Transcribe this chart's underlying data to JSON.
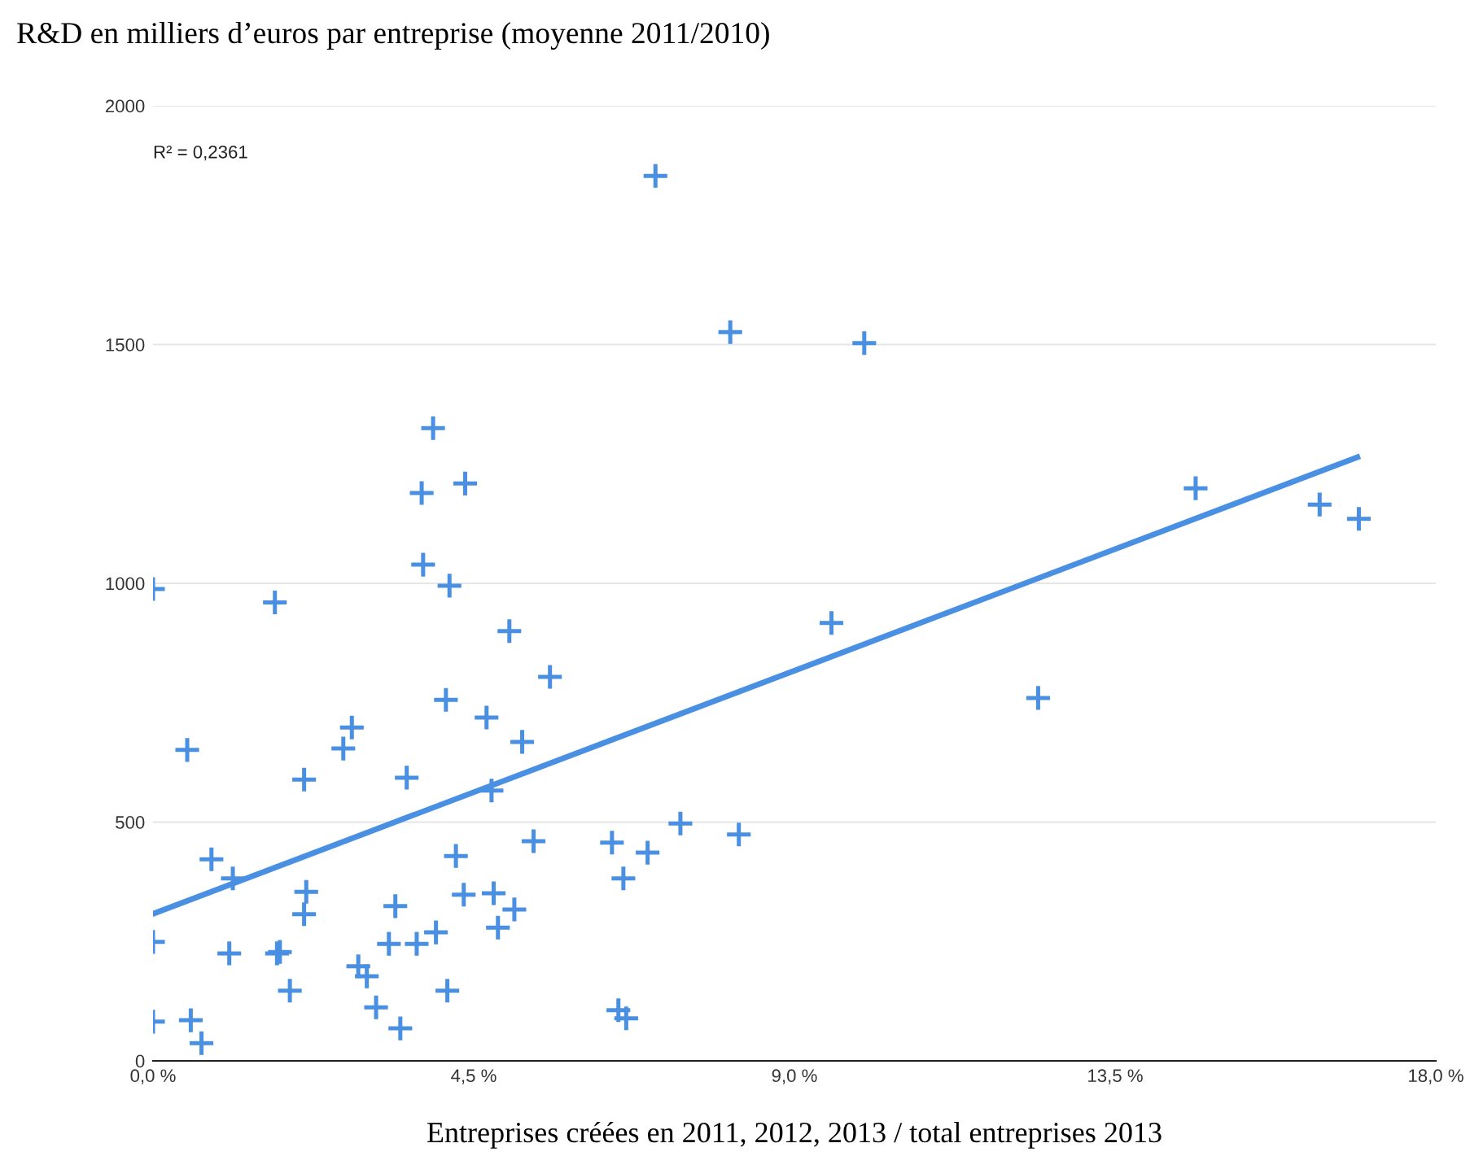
{
  "chart_data": {
    "type": "scatter",
    "title": "R&D en milliers d’euros par entreprise (moyenne 2011/2010)",
    "xlabel": "Entreprises créées en 2011, 2012, 2013 / total entreprises 2013",
    "annotations": [
      "R² = 0,2361"
    ],
    "xlim": [
      0,
      18
    ],
    "ylim": [
      0,
      2000
    ],
    "xticks": [
      {
        "value": 0,
        "label": "0,0 %"
      },
      {
        "value": 4.5,
        "label": "4,5 %"
      },
      {
        "value": 9,
        "label": "9,0 %"
      },
      {
        "value": 13.5,
        "label": "13,5 %"
      },
      {
        "value": 18,
        "label": "18,0 %"
      }
    ],
    "yticks": [
      0,
      500,
      1000,
      1500,
      2000
    ],
    "grid": "y",
    "series": [
      {
        "marker": "cross",
        "color": "#4a90e2",
        "x": [
          7.05,
          8.1,
          9.98,
          3.93,
          4.38,
          3.77,
          3.79,
          4.16,
          0,
          1.71,
          14.63,
          16.37,
          16.92,
          9.52,
          5.0,
          5.57,
          4.11,
          4.68,
          12.42,
          2.79,
          2.67,
          0.48,
          5.18,
          2.12,
          3.56,
          4.75,
          7.4,
          8.22,
          6.44,
          5.34,
          6.94,
          4.25,
          0.82,
          1.12,
          6.6,
          2.15,
          4.36,
          4.78,
          3.4,
          5.07,
          2.12,
          0,
          3.97,
          3.7,
          3.31,
          4.84,
          1.07,
          1.74,
          1.78,
          2.88,
          3.0,
          1.92,
          4.13,
          3.13,
          3.47,
          0,
          0.53,
          0.68,
          6.53,
          6.64
        ],
        "values": [
          1853,
          1526,
          1503,
          1325,
          1209,
          1189,
          1039,
          995,
          988,
          960,
          1199,
          1165,
          1135,
          917,
          900,
          804,
          756,
          719,
          760,
          698,
          654,
          651,
          668,
          589,
          593,
          566,
          497,
          474,
          457,
          460,
          436,
          429,
          422,
          382,
          382,
          354,
          348,
          351,
          324,
          317,
          307,
          249,
          269,
          245,
          245,
          279,
          225,
          225,
          228,
          198,
          177,
          147,
          147,
          112,
          68,
          82,
          85,
          37,
          106,
          89
        ]
      },
      {
        "type": "line",
        "marker": "none",
        "color": "#4a90e2",
        "x": [
          0,
          16.9
        ],
        "values": [
          308,
          1264
        ]
      }
    ]
  }
}
